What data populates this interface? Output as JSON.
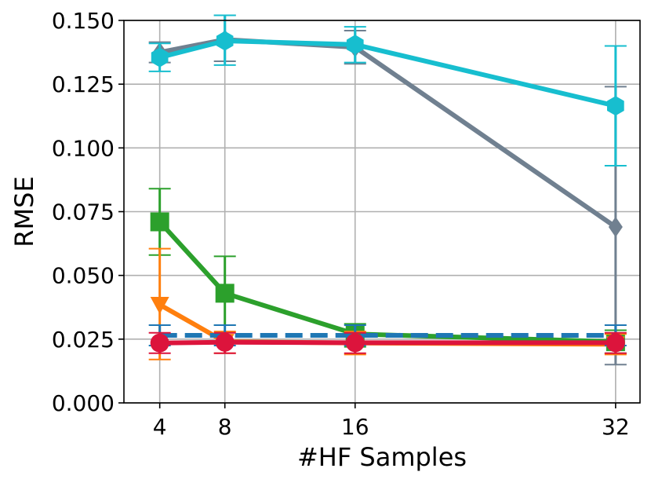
{
  "chart_data": {
    "type": "line",
    "xlabel": "#HF Samples",
    "ylabel": "RMSE",
    "x": [
      4,
      8,
      16,
      32
    ],
    "xlim": [
      1.8,
      33.5
    ],
    "ylim": [
      0.0,
      0.15
    ],
    "x_ticks": [
      "4",
      "8",
      "16",
      "32"
    ],
    "y_ticks": [
      "0.000",
      "0.025",
      "0.050",
      "0.075",
      "0.100",
      "0.125",
      "0.150"
    ],
    "y_tick_values": [
      0.0,
      0.025,
      0.05,
      0.075,
      0.1,
      0.125,
      0.15
    ],
    "grid": true,
    "legend": null,
    "series": [
      {
        "color": "#708090",
        "marker": "diamond",
        "dashed": false,
        "values": [
          0.1375,
          0.1425,
          0.1395,
          0.069
        ],
        "err_low": [
          0.1335,
          0.134,
          0.133,
          0.015
        ],
        "err_high": [
          0.1415,
          0.152,
          0.146,
          0.124
        ]
      },
      {
        "color": "#17becf",
        "marker": "hexagon",
        "dashed": false,
        "values": [
          0.1355,
          0.142,
          0.1405,
          0.1165
        ],
        "err_low": [
          0.13,
          0.1325,
          0.1335,
          0.093
        ],
        "err_high": [
          0.141,
          0.152,
          0.1475,
          0.14
        ]
      },
      {
        "color": "#2ca02c",
        "marker": "square",
        "dashed": false,
        "values": [
          0.071,
          0.043,
          0.027,
          0.024
        ],
        "err_low": [
          0.058,
          0.0305,
          0.022,
          0.0195
        ],
        "err_high": [
          0.084,
          0.0575,
          0.031,
          0.0285
        ]
      },
      {
        "color": "#ff7f0e",
        "marker": "triangle-down",
        "dashed": false,
        "values": [
          0.0385,
          0.024,
          0.0235,
          0.023
        ],
        "err_low": [
          0.017,
          0.0195,
          0.019,
          0.019
        ],
        "err_high": [
          0.0605,
          0.028,
          0.028,
          0.027
        ]
      },
      {
        "color": "#1f77b4",
        "marker": "none",
        "dashed": true,
        "values": [
          0.0265,
          0.0265,
          0.0265,
          0.0265
        ],
        "err_low": [
          0.0225,
          0.0225,
          0.0225,
          0.0225
        ],
        "err_high": [
          0.0305,
          0.0305,
          0.0305,
          0.0305
        ]
      },
      {
        "color": "#dc143c",
        "marker": "circle",
        "dashed": false,
        "values": [
          0.0235,
          0.0238,
          0.0236,
          0.0236
        ],
        "err_low": [
          0.0195,
          0.0195,
          0.0195,
          0.0195
        ],
        "err_high": [
          0.0275,
          0.0275,
          0.0275,
          0.0275
        ]
      }
    ]
  }
}
